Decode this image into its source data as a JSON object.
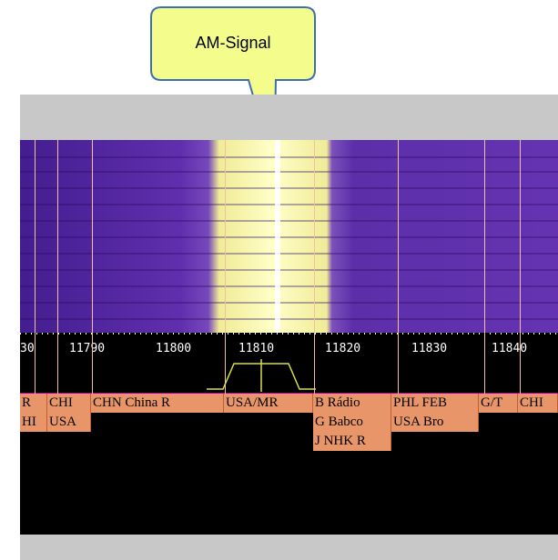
{
  "callout": {
    "label": "AM-Signal"
  },
  "scale": {
    "ticks": [
      "30",
      "11790",
      "11800",
      "11810",
      "11820",
      "11830",
      "11840"
    ]
  },
  "stations": {
    "row1": [
      "R",
      "CHI",
      "CHN China R",
      "USA/MR",
      "B Rádio",
      "PHL FEB",
      "G/T",
      "CHI"
    ],
    "row2": [
      "HI",
      "USA",
      "G Babco",
      "USA Bro"
    ],
    "row3": [
      "J NHK R"
    ]
  },
  "colors": {
    "waterfall_low": "#5a22b0",
    "signal": "#fffbc8",
    "station_tag": "#e8956a",
    "callout_fill": "#f4fc8c",
    "callout_border": "#3d6fb0",
    "passband": "#d8e040",
    "magenta": "#b000b0"
  }
}
